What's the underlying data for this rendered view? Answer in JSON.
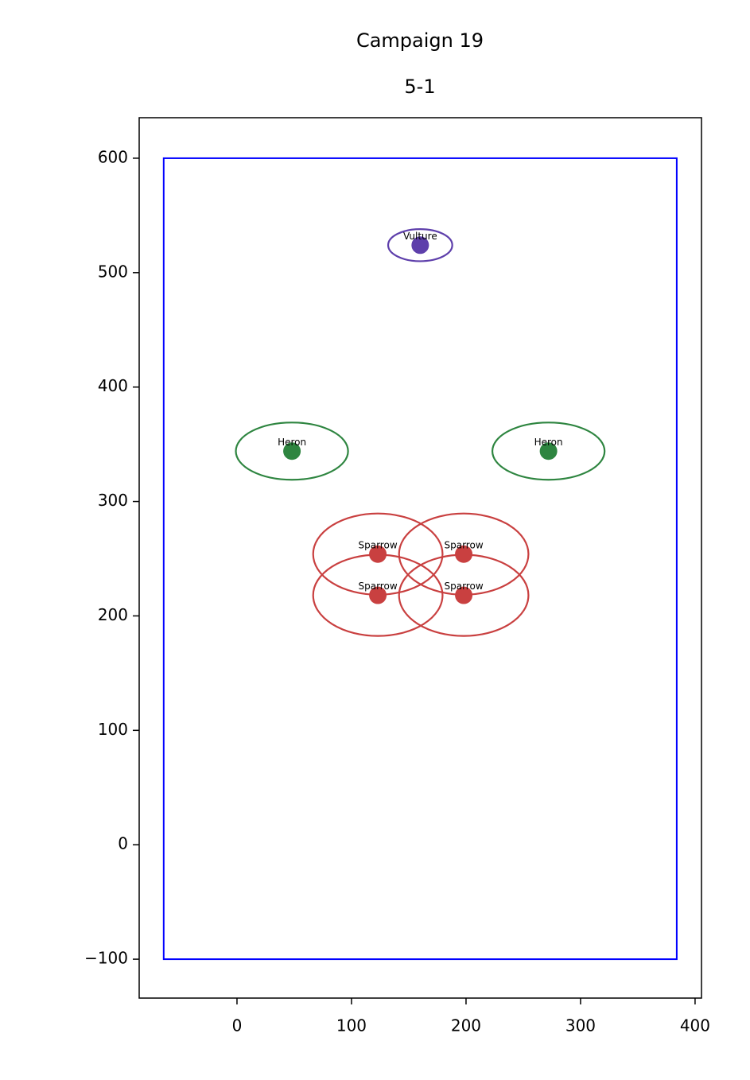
{
  "chart_data": {
    "type": "scatter",
    "title": "Campaign 19",
    "subtitle": "5-1",
    "xlim": [
      -85.4,
      405.6
    ],
    "ylim": [
      -134,
      635.4
    ],
    "xticks": [
      0,
      100,
      200,
      300,
      400
    ],
    "yticks": [
      {
        "value": -100,
        "label": "−100"
      },
      0,
      100,
      200,
      300,
      400,
      500,
      600
    ],
    "boundary": {
      "x": [
        -64,
        384
      ],
      "y": [
        -100,
        600
      ],
      "color": "#0000ff"
    },
    "points": [
      {
        "label": "Vulture",
        "x": 160,
        "y": 524,
        "width": 56,
        "height": 28,
        "color": "#5e3fab"
      },
      {
        "label": "Heron",
        "x": 48,
        "y": 344,
        "width": 98,
        "height": 50,
        "color": "#2e8540"
      },
      {
        "label": "Heron",
        "x": 272,
        "y": 344,
        "width": 98,
        "height": 50,
        "color": "#2e8540"
      },
      {
        "label": "Sparrow",
        "x": 123,
        "y": 254,
        "width": 113,
        "height": 71,
        "color": "#c94040"
      },
      {
        "label": "Sparrow",
        "x": 198,
        "y": 254,
        "width": 113,
        "height": 71,
        "color": "#c94040"
      },
      {
        "label": "Sparrow",
        "x": 123,
        "y": 218,
        "width": 113,
        "height": 71,
        "color": "#c94040"
      },
      {
        "label": "Sparrow",
        "x": 198,
        "y": 218,
        "width": 113,
        "height": 71,
        "color": "#c94040"
      }
    ]
  }
}
